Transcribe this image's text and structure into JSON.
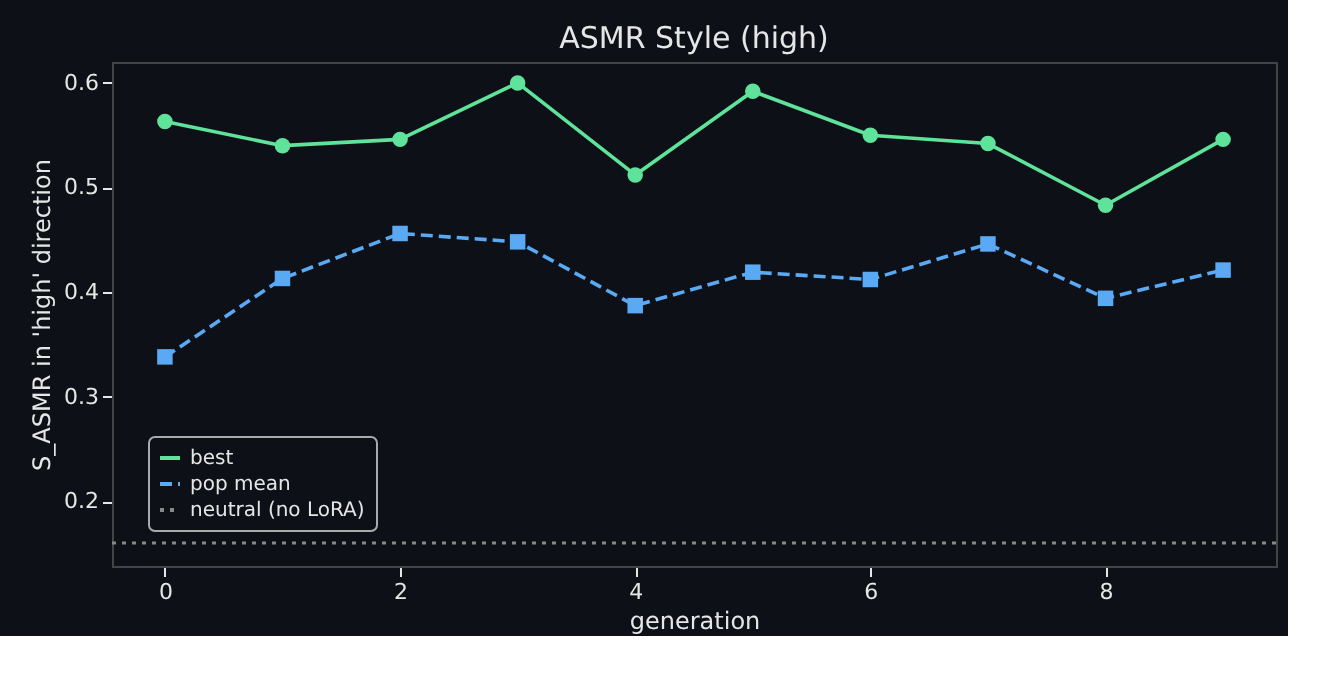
{
  "chart_data": {
    "type": "line",
    "title": "ASMR Style (high)",
    "xlabel": "generation",
    "ylabel": "S_ASMR in 'high' direction",
    "x": [
      0,
      1,
      2,
      3,
      4,
      5,
      6,
      7,
      8,
      9
    ],
    "series": [
      {
        "name": "best",
        "color": "#5fe39a",
        "values": [
          0.563,
          0.54,
          0.546,
          0.6,
          0.512,
          0.592,
          0.55,
          0.542,
          0.483,
          0.546
        ],
        "marker": "circle",
        "line_style": "solid"
      },
      {
        "name": "pop mean",
        "color": "#5aa9f5",
        "values": [
          0.338,
          0.413,
          0.456,
          0.448,
          0.387,
          0.419,
          0.412,
          0.446,
          0.394,
          0.421
        ],
        "marker": "square",
        "line_style": "dashed"
      }
    ],
    "ref_lines": [
      {
        "axis": "y",
        "value": 0.16,
        "label": "neutral (no LoRA)",
        "color": "#888888",
        "line_style": "dotted"
      }
    ],
    "xlim": [
      -0.45,
      9.45
    ],
    "xticks": [
      0,
      2,
      4,
      6,
      8
    ],
    "ylim": [
      0.138,
      0.62
    ],
    "yticks": [
      0.2,
      0.3,
      0.4,
      0.5,
      0.6
    ],
    "grid": false,
    "legend": "bottom left"
  }
}
